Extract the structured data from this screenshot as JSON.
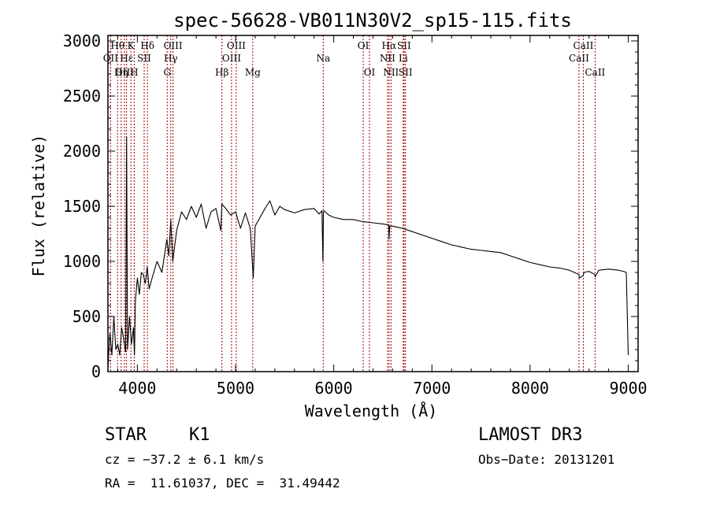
{
  "chart_data": {
    "type": "line",
    "title": "spec-56628-VB011N30V2_sp15-115.fits",
    "xlabel": "Wavelength (Å)",
    "ylabel": "Flux (relative)",
    "xlim": [
      3700,
      9100
    ],
    "ylim": [
      0,
      3050
    ],
    "xticks": [
      4000,
      5000,
      6000,
      7000,
      8000,
      9000
    ],
    "yticks": [
      0,
      500,
      1000,
      1500,
      2000,
      2500,
      3000
    ],
    "line_color": "#000000",
    "marker_color": "#a00000",
    "spectrum": {
      "x": [
        3700,
        3720,
        3740,
        3760,
        3780,
        3800,
        3820,
        3840,
        3860,
        3880,
        3890,
        3900,
        3920,
        3940,
        3960,
        3970,
        3980,
        4000,
        4020,
        4040,
        4060,
        4080,
        4100,
        4120,
        4150,
        4200,
        4250,
        4300,
        4320,
        4340,
        4360,
        4400,
        4450,
        4500,
        4550,
        4600,
        4650,
        4700,
        4750,
        4800,
        4850,
        4860,
        4900,
        4950,
        5000,
        5050,
        5100,
        5150,
        5180,
        5200,
        5250,
        5300,
        5350,
        5400,
        5450,
        5500,
        5600,
        5700,
        5800,
        5850,
        5880,
        5890,
        5895,
        5900,
        5950,
        6000,
        6100,
        6200,
        6300,
        6400,
        6500,
        6560,
        6563,
        6570,
        6600,
        6700,
        6800,
        6900,
        7000,
        7100,
        7200,
        7300,
        7400,
        7500,
        7600,
        7700,
        7800,
        7900,
        8000,
        8100,
        8200,
        8300,
        8400,
        8450,
        8498,
        8500,
        8540,
        8542,
        8550,
        8600,
        8660,
        8662,
        8700,
        8800,
        8900,
        8950,
        8980,
        9000
      ],
      "y": [
        30,
        350,
        150,
        500,
        200,
        250,
        150,
        400,
        300,
        180,
        2130,
        200,
        500,
        250,
        400,
        150,
        650,
        850,
        700,
        900,
        880,
        800,
        950,
        750,
        850,
        1000,
        900,
        1200,
        1050,
        1380,
        1000,
        1280,
        1450,
        1380,
        1500,
        1400,
        1520,
        1300,
        1450,
        1480,
        1280,
        1520,
        1480,
        1420,
        1450,
        1300,
        1440,
        1300,
        850,
        1320,
        1400,
        1480,
        1550,
        1420,
        1500,
        1470,
        1440,
        1470,
        1480,
        1430,
        1460,
        1000,
        1450,
        1460,
        1420,
        1400,
        1380,
        1380,
        1360,
        1350,
        1340,
        1330,
        1200,
        1320,
        1320,
        1300,
        1270,
        1240,
        1210,
        1180,
        1150,
        1130,
        1110,
        1100,
        1090,
        1080,
        1050,
        1020,
        990,
        970,
        950,
        940,
        920,
        900,
        880,
        850,
        870,
        880,
        900,
        910,
        880,
        860,
        920,
        930,
        920,
        910,
        900,
        150
      ]
    },
    "lines": [
      {
        "label": "Hθ",
        "x": 3798,
        "row": 1
      },
      {
        "label": "OII",
        "x": 3727,
        "row": 2
      },
      {
        "label": "OIII",
        "x": 3869,
        "row": 3
      },
      {
        "label": "K",
        "x": 3934,
        "row": 1
      },
      {
        "label": "H",
        "x": 3968,
        "row": 3
      },
      {
        "label": "Hε",
        "x": 3890,
        "row": 2
      },
      {
        "label": "Hη",
        "x": 3835,
        "row": 3
      },
      {
        "label": "SII",
        "x": 4069,
        "row": 2
      },
      {
        "label": "Hδ",
        "x": 4102,
        "row": 1
      },
      {
        "label": "OIII",
        "x": 4363,
        "row": 1
      },
      {
        "label": "Hγ",
        "x": 4340,
        "row": 2
      },
      {
        "label": "G",
        "x": 4304,
        "row": 3
      },
      {
        "label": "Hβ",
        "x": 4861,
        "row": 3
      },
      {
        "label": "OIII",
        "x": 5007,
        "row": 1
      },
      {
        "label": "OIII",
        "x": 4959,
        "row": 2
      },
      {
        "label": "Mg",
        "x": 5175,
        "row": 3
      },
      {
        "label": "Na",
        "x": 5893,
        "row": 2
      },
      {
        "label": "OI",
        "x": 6300,
        "row": 1
      },
      {
        "label": "OI",
        "x": 6364,
        "row": 3
      },
      {
        "label": "Hα",
        "x": 6563,
        "row": 1
      },
      {
        "label": "NII",
        "x": 6548,
        "row": 2
      },
      {
        "label": "NII",
        "x": 6583,
        "row": 3
      },
      {
        "label": "SII",
        "x": 6716,
        "row": 1
      },
      {
        "label": "Li",
        "x": 6708,
        "row": 2
      },
      {
        "label": "SII",
        "x": 6731,
        "row": 3
      },
      {
        "label": "CaII",
        "x": 8542,
        "row": 1
      },
      {
        "label": "CaII",
        "x": 8498,
        "row": 2
      },
      {
        "label": "CaII",
        "x": 8662,
        "row": 3
      }
    ]
  },
  "info": {
    "object_class": "STAR",
    "subclass": "K1",
    "survey": "LAMOST DR3",
    "cz": "cz = −37.2 ± 6.1 km/s",
    "obs_date": "Obs−Date: 20131201",
    "radec": "RA =  11.61037, DEC =  31.49442"
  }
}
